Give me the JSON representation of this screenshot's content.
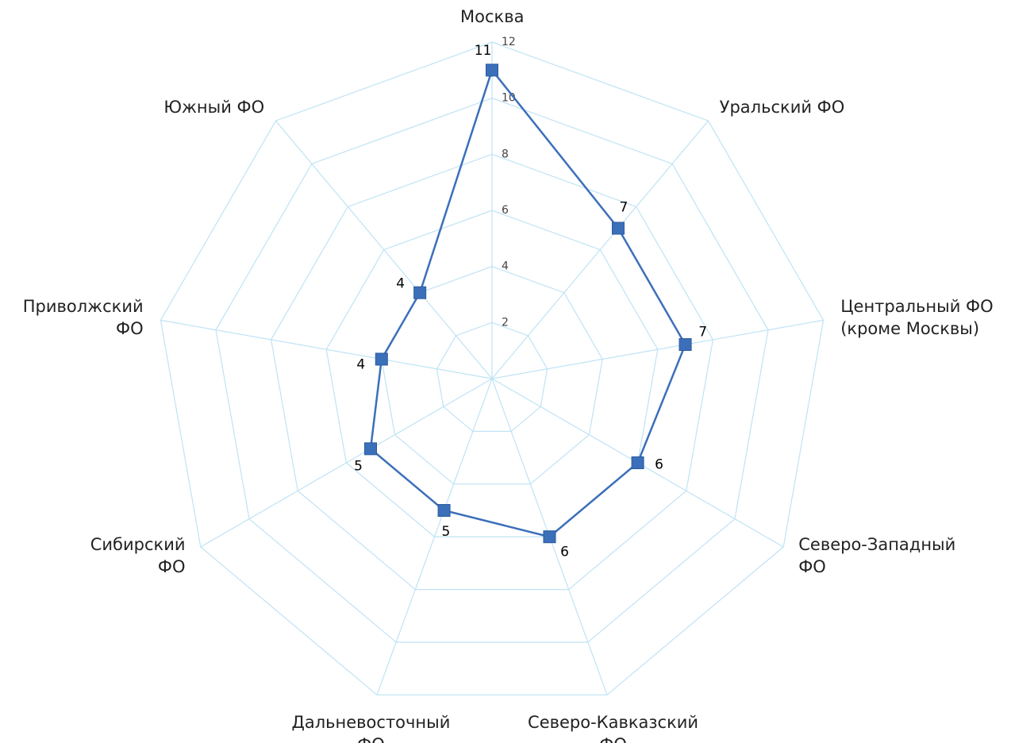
{
  "chart_data": {
    "type": "radar",
    "categories": [
      "Москва",
      "Уральский ФО",
      "Центральный ФО\n(кроме Москвы)",
      "Северо-Западный\nФО",
      "Северо-Кавказский\nФО",
      "Дальневосточный\nФО",
      "Сибирский\nФО",
      "Приволжский\nФО",
      "Южный ФО"
    ],
    "values": [
      11,
      7,
      7,
      6,
      6,
      5,
      5,
      4,
      4
    ],
    "color": "#3b6fba",
    "grid_color": "#bfe3f5",
    "rlim": [
      0,
      12
    ],
    "rticks": [
      2,
      4,
      6,
      8,
      10,
      12
    ]
  }
}
